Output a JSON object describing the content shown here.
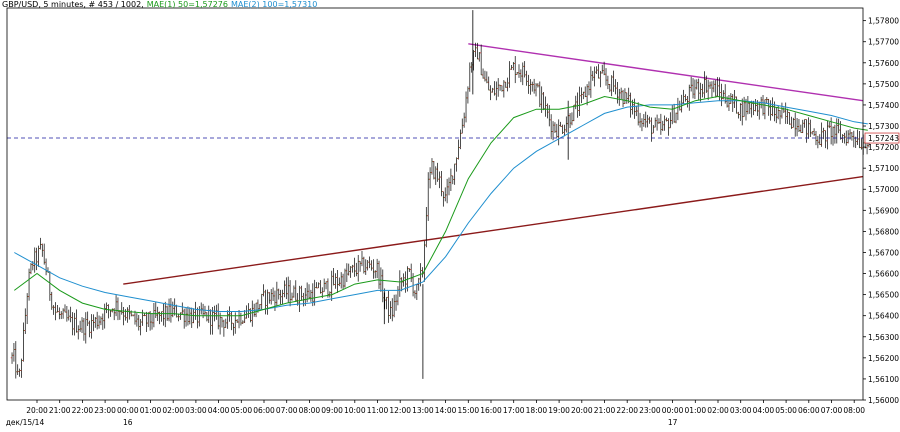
{
  "chart_data": {
    "type": "ohlc-bar",
    "symbol": "GBPUSD",
    "timeframe": "5 minutes",
    "bar_counter": "# 453 / 1002",
    "indicators": [
      {
        "name": "MAE(1) 50",
        "value": "1,57276",
        "color": "#1a9a1a"
      },
      {
        "name": "MAE(2) 100",
        "value": "1,57310",
        "color": "#1f8fcf"
      }
    ],
    "header": {
      "symbol_text": "GBP/USD",
      "timeframe_text": ", 5 minutes",
      "counter_text": ", # 453 / 1002,",
      "ind1_text": "MAE(1) 50=1,57276",
      "ind2_text": "MAE(2) 100=1,57310"
    },
    "ylim": [
      1.56,
      1.5786
    ],
    "y_ticks": [
      "1,57800",
      "1,57700",
      "1,57600",
      "1,57500",
      "1,57400",
      "1,57300",
      "1,57200",
      "1,57100",
      "1,57000",
      "1,56900",
      "1,56800",
      "1,56700",
      "1,56600",
      "1,56500",
      "1,56400",
      "1,56300",
      "1,56200",
      "1,56100",
      "1,56000"
    ],
    "current_price": "1,57243",
    "current_price_value": 1.57243,
    "x_ticks": [
      "20:00",
      "21:00",
      "22:00",
      "23:00",
      "00:00",
      "01:00",
      "02:00",
      "03:00",
      "04:00",
      "05:00",
      "06:00",
      "07:00",
      "08:00",
      "09:00",
      "10:00",
      "11:00",
      "12:00",
      "13:00",
      "14:00",
      "15:00",
      "16:00",
      "17:00",
      "18:00",
      "19:00",
      "20:00",
      "21:00",
      "22:00",
      "23:00",
      "00:00",
      "01:00",
      "02:00",
      "03:00",
      "04:00",
      "05:00",
      "06:00",
      "07:00",
      "08:00"
    ],
    "date_labels": [
      {
        "text": "дек/15/14",
        "tick_index": 0
      },
      {
        "text": "16",
        "tick_index": 4
      },
      {
        "text": "17",
        "tick_index": 28
      }
    ],
    "trendlines": [
      {
        "name": "support",
        "color": "#8b1a1a",
        "from": {
          "tick": 3.8,
          "price": 1.5655
        },
        "to": {
          "tick": 36.7,
          "price": 1.5706
        }
      },
      {
        "name": "resistance",
        "color": "#b030b0",
        "from": {
          "tick": 19.0,
          "price": 1.5769
        },
        "to": {
          "tick": 36.7,
          "price": 1.5742
        }
      }
    ],
    "price_path": [
      [
        -1.0,
        1.562
      ],
      [
        -0.8,
        1.5608
      ],
      [
        -0.6,
        1.563
      ],
      [
        -0.4,
        1.5655
      ],
      [
        -0.2,
        1.5665
      ],
      [
        0.0,
        1.5668
      ],
      [
        0.2,
        1.5672
      ],
      [
        0.4,
        1.5662
      ],
      [
        0.6,
        1.565
      ],
      [
        0.8,
        1.5642
      ],
      [
        1.0,
        1.564
      ],
      [
        1.3,
        1.5638
      ],
      [
        1.6,
        1.5636
      ],
      [
        2.0,
        1.5635
      ],
      [
        2.3,
        1.5636
      ],
      [
        2.7,
        1.5638
      ],
      [
        3.0,
        1.5642
      ],
      [
        3.5,
        1.5645
      ],
      [
        4.0,
        1.564
      ],
      [
        4.5,
        1.5636
      ],
      [
        5.0,
        1.5638
      ],
      [
        5.5,
        1.564
      ],
      [
        6.0,
        1.5642
      ],
      [
        6.5,
        1.5641
      ],
      [
        7.0,
        1.5639
      ],
      [
        7.5,
        1.564
      ],
      [
        8.0,
        1.5638
      ],
      [
        8.5,
        1.5637
      ],
      [
        9.0,
        1.564
      ],
      [
        9.5,
        1.5642
      ],
      [
        10.0,
        1.5648
      ],
      [
        10.5,
        1.565
      ],
      [
        11.0,
        1.5651
      ],
      [
        11.5,
        1.565
      ],
      [
        12.0,
        1.565
      ],
      [
        12.5,
        1.5652
      ],
      [
        13.0,
        1.5655
      ],
      [
        13.5,
        1.5658
      ],
      [
        14.0,
        1.5662
      ],
      [
        14.5,
        1.5664
      ],
      [
        15.0,
        1.5662
      ],
      [
        15.3,
        1.5648
      ],
      [
        15.6,
        1.564
      ],
      [
        16.0,
        1.5655
      ],
      [
        16.4,
        1.566
      ],
      [
        16.7,
        1.565
      ],
      [
        17.0,
        1.5662
      ],
      [
        17.2,
        1.57
      ],
      [
        17.4,
        1.571
      ],
      [
        17.7,
        1.5705
      ],
      [
        18.0,
        1.5695
      ],
      [
        18.4,
        1.5712
      ],
      [
        18.8,
        1.5735
      ],
      [
        19.1,
        1.576
      ],
      [
        19.4,
        1.5765
      ],
      [
        19.7,
        1.5752
      ],
      [
        20.0,
        1.5745
      ],
      [
        20.5,
        1.575
      ],
      [
        21.0,
        1.5758
      ],
      [
        21.5,
        1.5755
      ],
      [
        22.0,
        1.5748
      ],
      [
        22.3,
        1.574
      ],
      [
        22.7,
        1.573
      ],
      [
        23.0,
        1.5728
      ],
      [
        23.5,
        1.5735
      ],
      [
        24.0,
        1.5742
      ],
      [
        24.5,
        1.5755
      ],
      [
        25.0,
        1.5752
      ],
      [
        25.5,
        1.5748
      ],
      [
        26.0,
        1.5742
      ],
      [
        26.5,
        1.5735
      ],
      [
        27.0,
        1.573
      ],
      [
        27.5,
        1.5728
      ],
      [
        28.0,
        1.5735
      ],
      [
        28.5,
        1.5742
      ],
      [
        29.0,
        1.5748
      ],
      [
        29.5,
        1.575
      ],
      [
        30.0,
        1.5746
      ],
      [
        30.5,
        1.5742
      ],
      [
        31.0,
        1.5738
      ],
      [
        31.5,
        1.574
      ],
      [
        32.0,
        1.574
      ],
      [
        32.5,
        1.5736
      ],
      [
        33.0,
        1.5734
      ],
      [
        33.5,
        1.5732
      ],
      [
        34.0,
        1.5728
      ],
      [
        34.5,
        1.5724
      ],
      [
        35.0,
        1.5728
      ],
      [
        35.5,
        1.5725
      ],
      [
        36.0,
        1.5726
      ],
      [
        36.3,
        1.5722
      ],
      [
        36.6,
        1.5724
      ]
    ],
    "ma50_path": [
      [
        -1.0,
        1.5652
      ],
      [
        0.0,
        1.566
      ],
      [
        1.0,
        1.5652
      ],
      [
        2.0,
        1.5646
      ],
      [
        3.0,
        1.5643
      ],
      [
        4.0,
        1.5642
      ],
      [
        5.0,
        1.5641
      ],
      [
        6.0,
        1.5641
      ],
      [
        7.0,
        1.564
      ],
      [
        8.0,
        1.564
      ],
      [
        9.0,
        1.564
      ],
      [
        10.0,
        1.5643
      ],
      [
        11.0,
        1.5646
      ],
      [
        12.0,
        1.5648
      ],
      [
        13.0,
        1.565
      ],
      [
        14.0,
        1.5655
      ],
      [
        15.0,
        1.5657
      ],
      [
        16.0,
        1.5656
      ],
      [
        17.0,
        1.566
      ],
      [
        18.0,
        1.568
      ],
      [
        19.0,
        1.5705
      ],
      [
        20.0,
        1.5722
      ],
      [
        21.0,
        1.5734
      ],
      [
        22.0,
        1.5738
      ],
      [
        23.0,
        1.5738
      ],
      [
        24.0,
        1.574
      ],
      [
        25.0,
        1.5744
      ],
      [
        26.0,
        1.5742
      ],
      [
        27.0,
        1.5739
      ],
      [
        28.0,
        1.5738
      ],
      [
        29.0,
        1.5742
      ],
      [
        30.0,
        1.5744
      ],
      [
        31.0,
        1.5742
      ],
      [
        32.0,
        1.574
      ],
      [
        33.0,
        1.5738
      ],
      [
        34.0,
        1.5735
      ],
      [
        35.0,
        1.5732
      ],
      [
        36.0,
        1.5729
      ],
      [
        36.6,
        1.5728
      ]
    ],
    "ma100_path": [
      [
        -1.0,
        1.567
      ],
      [
        0.0,
        1.5664
      ],
      [
        1.0,
        1.5658
      ],
      [
        2.0,
        1.5654
      ],
      [
        3.0,
        1.5651
      ],
      [
        4.0,
        1.5649
      ],
      [
        5.0,
        1.5647
      ],
      [
        6.0,
        1.5645
      ],
      [
        7.0,
        1.5643
      ],
      [
        8.0,
        1.5642
      ],
      [
        9.0,
        1.5642
      ],
      [
        10.0,
        1.5643
      ],
      [
        11.0,
        1.5645
      ],
      [
        12.0,
        1.5646
      ],
      [
        13.0,
        1.5648
      ],
      [
        14.0,
        1.565
      ],
      [
        15.0,
        1.5652
      ],
      [
        16.0,
        1.5652
      ],
      [
        17.0,
        1.5656
      ],
      [
        18.0,
        1.5668
      ],
      [
        19.0,
        1.5684
      ],
      [
        20.0,
        1.5698
      ],
      [
        21.0,
        1.571
      ],
      [
        22.0,
        1.5718
      ],
      [
        23.0,
        1.5724
      ],
      [
        24.0,
        1.573
      ],
      [
        25.0,
        1.5736
      ],
      [
        26.0,
        1.5739
      ],
      [
        27.0,
        1.574
      ],
      [
        28.0,
        1.574
      ],
      [
        29.0,
        1.5741
      ],
      [
        30.0,
        1.5742
      ],
      [
        31.0,
        1.5742
      ],
      [
        32.0,
        1.5741
      ],
      [
        33.0,
        1.5739
      ],
      [
        34.0,
        1.5737
      ],
      [
        35.0,
        1.5735
      ],
      [
        36.0,
        1.5732
      ],
      [
        36.6,
        1.5731
      ]
    ],
    "colors": {
      "bars": "#000000",
      "up_tick": "#1a7a1a",
      "down_tick": "#c02020",
      "price_line": "#1a1aa0",
      "price_label_border": "#d04040",
      "grid": "#c8c8c8"
    }
  }
}
